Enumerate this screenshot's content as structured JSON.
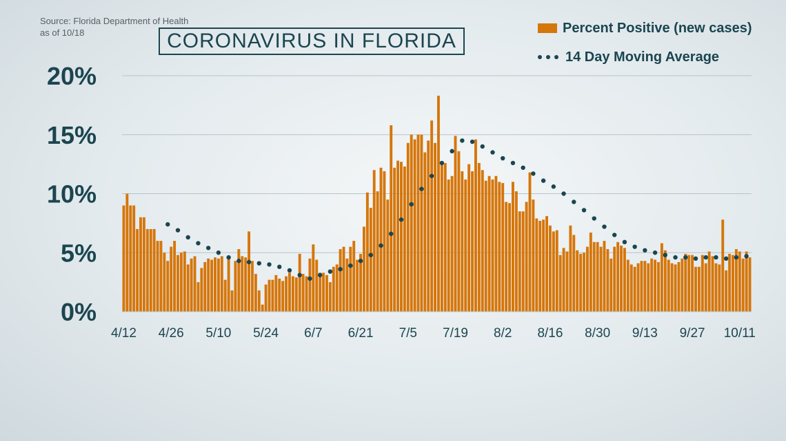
{
  "source": {
    "line1": "Source: Florida Department of Health",
    "line2": "as of 10/18"
  },
  "title": "CORONAVIRUS IN FLORIDA",
  "legend": {
    "bars": "Percent Positive (new cases)",
    "line": "14 Day Moving Average"
  },
  "colors": {
    "bar": "#d5760b",
    "line": "#1b4550",
    "grid": "#b7c3c8"
  },
  "chart_data": {
    "type": "bar",
    "ylim": [
      0,
      20
    ],
    "yticks": [
      "0%",
      "5%",
      "10%",
      "15%",
      "20%"
    ],
    "xticks": [
      "4/12",
      "4/26",
      "5/10",
      "5/24",
      "6/7",
      "6/21",
      "7/5",
      "7/19",
      "8/2",
      "8/16",
      "8/30",
      "9/13",
      "9/27",
      "10/11"
    ],
    "start_date": "4/12",
    "series": [
      {
        "name": "Percent Positive (new cases)",
        "values": [
          9.0,
          10.0,
          9.0,
          9.0,
          7.0,
          8.0,
          8.0,
          7.0,
          7.0,
          7.0,
          6.0,
          6.0,
          5.0,
          4.3,
          5.5,
          6.0,
          4.8,
          5.0,
          5.1,
          4.0,
          4.5,
          4.7,
          2.5,
          3.7,
          4.2,
          4.5,
          4.4,
          4.6,
          4.5,
          4.7,
          2.7,
          4.5,
          1.8,
          4.3,
          5.3,
          4.7,
          4.6,
          6.8,
          4.3,
          3.2,
          1.8,
          0.6,
          2.3,
          2.7,
          2.7,
          3.1,
          2.8,
          2.6,
          3.0,
          3.3,
          3.0,
          2.9,
          4.9,
          3.2,
          3.0,
          4.5,
          5.7,
          4.4,
          3.3,
          3.3,
          3.1,
          2.5,
          3.8,
          4.0,
          5.3,
          5.5,
          4.5,
          5.5,
          6.0,
          4.4,
          4.9,
          7.2,
          10.1,
          8.8,
          12.0,
          10.2,
          12.2,
          11.9,
          9.5,
          15.8,
          12.2,
          12.8,
          12.7,
          12.3,
          14.3,
          15.0,
          14.6,
          15.0,
          15.0,
          13.5,
          14.5,
          16.2,
          14.3,
          18.3,
          12.7,
          12.6,
          11.2,
          11.5,
          14.9,
          13.6,
          11.9,
          11.2,
          12.5,
          11.9,
          14.6,
          12.6,
          12.0,
          11.1,
          11.5,
          11.2,
          11.5,
          11.0,
          10.9,
          9.3,
          9.2,
          11.0,
          10.2,
          8.5,
          8.5,
          9.3,
          11.8,
          9.5,
          7.9,
          7.7,
          7.8,
          8.1,
          7.3,
          6.8,
          6.9,
          4.8,
          5.4,
          5.1,
          7.3,
          6.5,
          5.2,
          4.9,
          5.0,
          5.5,
          6.7,
          5.9,
          5.9,
          5.5,
          6.0,
          5.3,
          4.5,
          5.5,
          5.9,
          5.6,
          5.4,
          4.4,
          4.0,
          3.8,
          4.1,
          4.3,
          4.3,
          4.1,
          4.5,
          4.4,
          4.2,
          5.8,
          5.2,
          4.4,
          4.1,
          4.0,
          4.2,
          4.5,
          4.9,
          4.8,
          4.8,
          3.8,
          3.8,
          4.8,
          4.1,
          5.1,
          4.7,
          4.1,
          4.0,
          7.8,
          3.5,
          4.9,
          4.8,
          5.3,
          5.1,
          4.5,
          5.1,
          4.6
        ]
      },
      {
        "name": "14 Day Moving Average",
        "points": [
          [
            13,
            7.4
          ],
          [
            16,
            6.9
          ],
          [
            19,
            6.3
          ],
          [
            22,
            5.8
          ],
          [
            25,
            5.4
          ],
          [
            28,
            5.0
          ],
          [
            31,
            4.6
          ],
          [
            34,
            4.3
          ],
          [
            37,
            4.2
          ],
          [
            40,
            4.1
          ],
          [
            43,
            4.0
          ],
          [
            46,
            3.8
          ],
          [
            49,
            3.5
          ],
          [
            52,
            3.1
          ],
          [
            55,
            2.8
          ],
          [
            58,
            3.1
          ],
          [
            61,
            3.4
          ],
          [
            64,
            3.6
          ],
          [
            67,
            3.9
          ],
          [
            70,
            4.3
          ],
          [
            73,
            4.8
          ],
          [
            76,
            5.6
          ],
          [
            79,
            6.6
          ],
          [
            82,
            7.8
          ],
          [
            85,
            9.1
          ],
          [
            88,
            10.4
          ],
          [
            91,
            11.5
          ],
          [
            94,
            12.6
          ],
          [
            97,
            13.6
          ],
          [
            100,
            14.5
          ],
          [
            103,
            14.4
          ],
          [
            106,
            14.0
          ],
          [
            109,
            13.5
          ],
          [
            112,
            13.0
          ],
          [
            115,
            12.6
          ],
          [
            118,
            12.2
          ],
          [
            121,
            11.7
          ],
          [
            124,
            11.1
          ],
          [
            127,
            10.6
          ],
          [
            130,
            10.0
          ],
          [
            133,
            9.3
          ],
          [
            136,
            8.6
          ],
          [
            139,
            7.9
          ],
          [
            142,
            7.2
          ],
          [
            145,
            6.5
          ],
          [
            148,
            5.9
          ],
          [
            151,
            5.5
          ],
          [
            154,
            5.2
          ],
          [
            157,
            5.0
          ],
          [
            160,
            4.8
          ],
          [
            163,
            4.6
          ],
          [
            166,
            4.6
          ],
          [
            169,
            4.5
          ],
          [
            172,
            4.6
          ],
          [
            175,
            4.6
          ],
          [
            178,
            4.5
          ],
          [
            181,
            4.6
          ],
          [
            184,
            4.7
          ]
        ]
      }
    ]
  }
}
